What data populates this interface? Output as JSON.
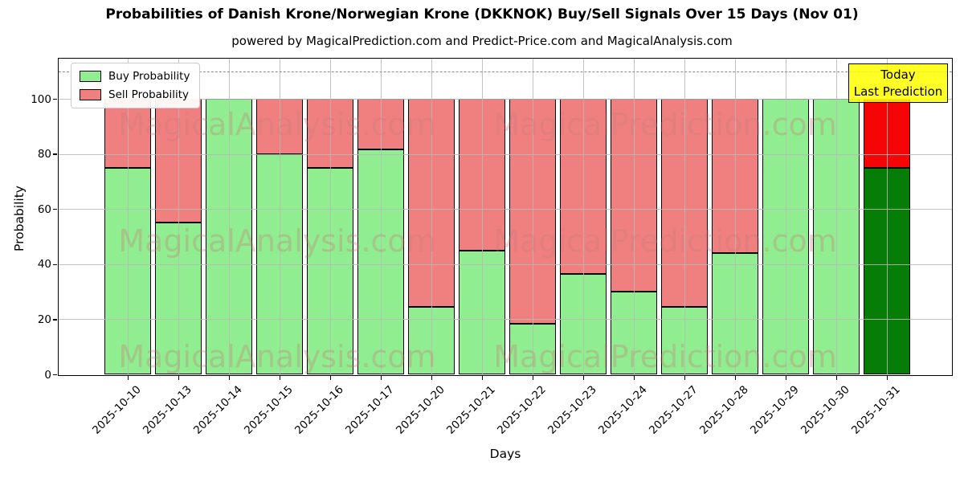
{
  "title": "Probabilities of Danish Krone/Norwegian Krone (DKKNOK) Buy/Sell Signals Over 15 Days (Nov 01)",
  "subtitle": "powered by MagicalPrediction.com and Predict-Price.com and MagicalAnalysis.com",
  "today_label": {
    "line1": "Today",
    "line2": "Last Prediction"
  },
  "legend": {
    "items": [
      {
        "label": "Buy Probability",
        "color": "#90ee90"
      },
      {
        "label": "Sell Probability",
        "color": "#f08080"
      }
    ]
  },
  "watermarks": {
    "left": "MagicalAnalysis.com",
    "right": "MagicalPrediction.com"
  },
  "colors": {
    "today_box_bg": "rgba(255,255,0,0.85)",
    "grid": "rgba(185,185,185,0.85)",
    "watermark": "rgba(200,120,120,0.33)",
    "bar_edge": "#000000"
  },
  "chart_data": {
    "type": "bar",
    "stacked": true,
    "title": "Probabilities of Danish Krone/Norwegian Krone (DKKNOK) Buy/Sell Signals Over 15 Days (Nov 01)",
    "xlabel": "Days",
    "ylabel": "Probability",
    "ylim": [
      0,
      115
    ],
    "yticks": [
      0,
      20,
      40,
      60,
      80,
      100
    ],
    "grid": true,
    "dashed_gridline_y": 110,
    "legend_position": "upper left",
    "categories": [
      "2025-10-10",
      "2025-10-13",
      "2025-10-14",
      "2025-10-15",
      "2025-10-16",
      "2025-10-17",
      "2025-10-20",
      "2025-10-21",
      "2025-10-22",
      "2025-10-23",
      "2025-10-24",
      "2025-10-27",
      "2025-10-28",
      "2025-10-29",
      "2025-10-30",
      "2025-10-31"
    ],
    "series": [
      {
        "name": "Buy Probability",
        "color": "#90ee90",
        "values": [
          75,
          55,
          100,
          80,
          75,
          81.5,
          24.5,
          45,
          18.5,
          36.5,
          30,
          24.5,
          44,
          100,
          100,
          75
        ]
      },
      {
        "name": "Sell Probability",
        "color": "#f08080",
        "values": [
          25,
          45,
          0,
          20,
          25,
          18.5,
          75.5,
          55,
          81.5,
          63.5,
          70,
          75.5,
          56,
          0,
          0,
          25
        ]
      }
    ],
    "today_bar": {
      "category": "2025-10-31",
      "buy_color": "#067d06",
      "sell_color": "#f50505"
    }
  }
}
